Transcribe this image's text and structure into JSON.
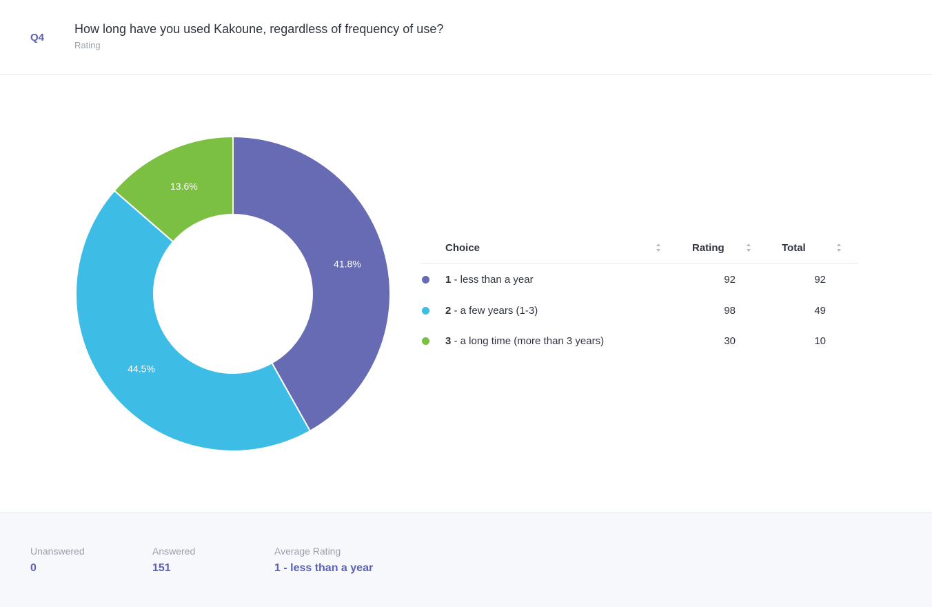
{
  "question": {
    "number": "Q4",
    "title": "How long have you used Kakoune, regardless of frequency of use?",
    "type": "Rating"
  },
  "table": {
    "headers": {
      "choice": "Choice",
      "rating": "Rating",
      "total": "Total"
    },
    "rows": [
      {
        "num": "1",
        "label": " - less than a year",
        "rating": "92",
        "total": "92",
        "color": "#666bb3"
      },
      {
        "num": "2",
        "label": " - a few years (1-3)",
        "rating": "98",
        "total": "49",
        "color": "#3dbde6"
      },
      {
        "num": "3",
        "label": " - a long time (more than 3 years)",
        "rating": "30",
        "total": "10",
        "color": "#7bbf43"
      }
    ]
  },
  "chart_data": {
    "type": "pie",
    "donut": true,
    "categories": [
      "1 - less than a year",
      "2 - a few years (1-3)",
      "3 - a long time (more than 3 years)"
    ],
    "values": [
      41.8,
      44.5,
      13.6
    ],
    "labels": [
      "41.8%",
      "44.5%",
      "13.6%"
    ],
    "colors": [
      "#666bb3",
      "#3dbde6",
      "#7bbf43"
    ],
    "start_angle_deg": 0,
    "direction": "clockwise",
    "legend": "right"
  },
  "footer": {
    "unanswered_label": "Unanswered",
    "unanswered_value": "0",
    "answered_label": "Answered",
    "answered_value": "151",
    "average_label": "Average Rating",
    "average_value": "1 - less than a year"
  }
}
